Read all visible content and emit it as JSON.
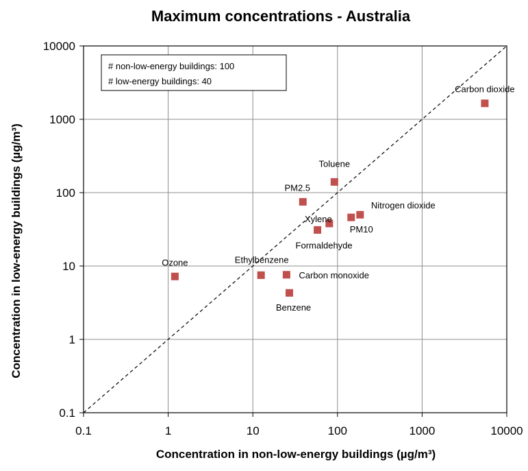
{
  "chart_data": {
    "type": "scatter",
    "title": "Maximum concentrations - Australia",
    "xlabel": "Concentration in non-low-energy buildings (µg/m³)",
    "ylabel": "Concentration in low-energy buildings (µg/m³)",
    "x_scale": "log",
    "y_scale": "log",
    "xlim": [
      0.1,
      10000
    ],
    "ylim": [
      0.1,
      10000
    ],
    "x_ticks": [
      "0.1",
      "1",
      "10",
      "100",
      "1000",
      "10000"
    ],
    "y_ticks": [
      "0.1",
      "1",
      "10",
      "100",
      "1000",
      "10000"
    ],
    "grid": true,
    "reference_line": "y = x (dashed)",
    "legend_box": {
      "lines": [
        "# non-low-energy buildings: 100",
        "# low-energy buildings: 40"
      ],
      "placement": "top-left"
    },
    "marker_color": "#c0504d",
    "points": [
      {
        "label": "Carbon dioxide",
        "x": 5500,
        "y": 1650
      },
      {
        "label": "Toluene",
        "x": 92,
        "y": 140
      },
      {
        "label": "PM2.5",
        "x": 39,
        "y": 75
      },
      {
        "label": "Nitrogen dioxide",
        "x": 185,
        "y": 50
      },
      {
        "label": "PM10",
        "x": 145,
        "y": 46
      },
      {
        "label": "Xylene",
        "x": 80,
        "y": 38
      },
      {
        "label": "Formaldehyde",
        "x": 58,
        "y": 31
      },
      {
        "label": "Ozone",
        "x": 1.2,
        "y": 7.2
      },
      {
        "label": "Ethylbenzene",
        "x": 12.5,
        "y": 7.5
      },
      {
        "label": "Carbon monoxide",
        "x": 25,
        "y": 7.6
      },
      {
        "label": "Benzene",
        "x": 27,
        "y": 4.3
      }
    ]
  }
}
